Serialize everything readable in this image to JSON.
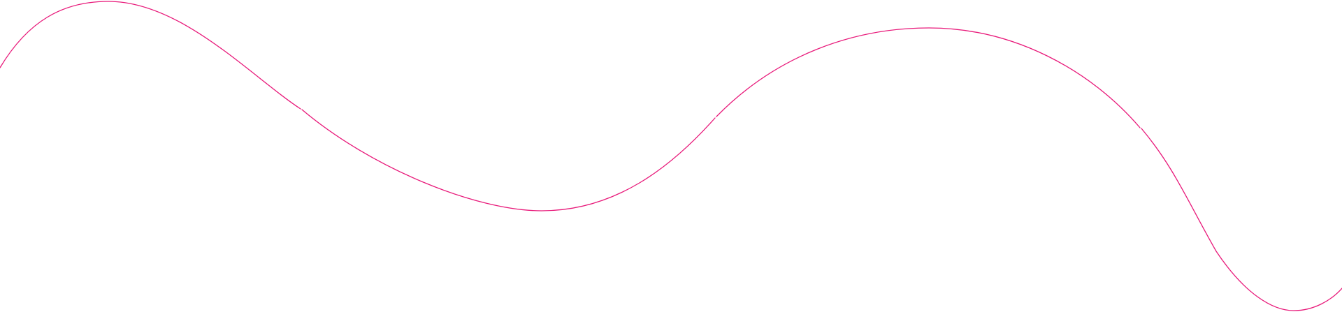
{
  "decoration": {
    "description_icon": "wavy-line",
    "stroke_color": "#e8197a",
    "background_color": "#ffffff",
    "segments": 4
  }
}
